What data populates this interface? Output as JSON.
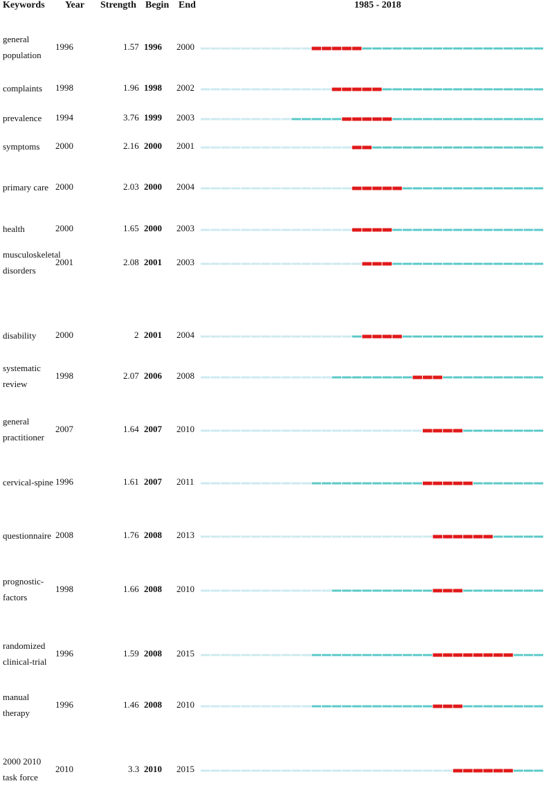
{
  "chart_data": {
    "type": "table",
    "columns": [
      "Keywords",
      "Year",
      "Strength",
      "Begin",
      "End",
      "1985 - 2018"
    ],
    "timeline_start": 1985,
    "timeline_end": 2018,
    "colors": {
      "burst": "#e0191a",
      "active": "#5bc8c8",
      "inactive": "#cdeaf0"
    },
    "rows": [
      {
        "keyword": "general population",
        "year": 1996,
        "strength": "1.57",
        "begin": 1996,
        "end": 2000
      },
      {
        "keyword": "complaints",
        "year": 1998,
        "strength": "1.96",
        "begin": 1998,
        "end": 2002
      },
      {
        "keyword": "prevalence",
        "year": 1994,
        "strength": "3.76",
        "begin": 1999,
        "end": 2003
      },
      {
        "keyword": "symptoms",
        "year": 2000,
        "strength": "2.16",
        "begin": 2000,
        "end": 2001
      },
      {
        "keyword": "primary care",
        "year": 2000,
        "strength": "2.03",
        "begin": 2000,
        "end": 2004
      },
      {
        "keyword": "health",
        "year": 2000,
        "strength": "1.65",
        "begin": 2000,
        "end": 2003
      },
      {
        "keyword": "musculoskeletal disorders",
        "year": 2001,
        "strength": "2.08",
        "begin": 2001,
        "end": 2003
      },
      {
        "keyword": "disability",
        "year": 2000,
        "strength": "2",
        "begin": 2001,
        "end": 2004
      },
      {
        "keyword": "systematic review",
        "year": 1998,
        "strength": "2.07",
        "begin": 2006,
        "end": 2008
      },
      {
        "keyword": "general practitioner",
        "year": 2007,
        "strength": "1.64",
        "begin": 2007,
        "end": 2010
      },
      {
        "keyword": "cervical-spine",
        "year": 1996,
        "strength": "1.61",
        "begin": 2007,
        "end": 2011
      },
      {
        "keyword": "questionnaire",
        "year": 2008,
        "strength": "1.76",
        "begin": 2008,
        "end": 2013
      },
      {
        "keyword": "prognostic-factors",
        "year": 1998,
        "strength": "1.66",
        "begin": 2008,
        "end": 2010
      },
      {
        "keyword": "randomized clinical-trial",
        "year": 1996,
        "strength": "1.59",
        "begin": 2008,
        "end": 2015
      },
      {
        "keyword": "manual therapy",
        "year": 1996,
        "strength": "1.46",
        "begin": 2008,
        "end": 2010
      },
      {
        "keyword": "2000 2010 task force",
        "year": 2010,
        "strength": "3.3",
        "begin": 2010,
        "end": 2015
      }
    ]
  }
}
